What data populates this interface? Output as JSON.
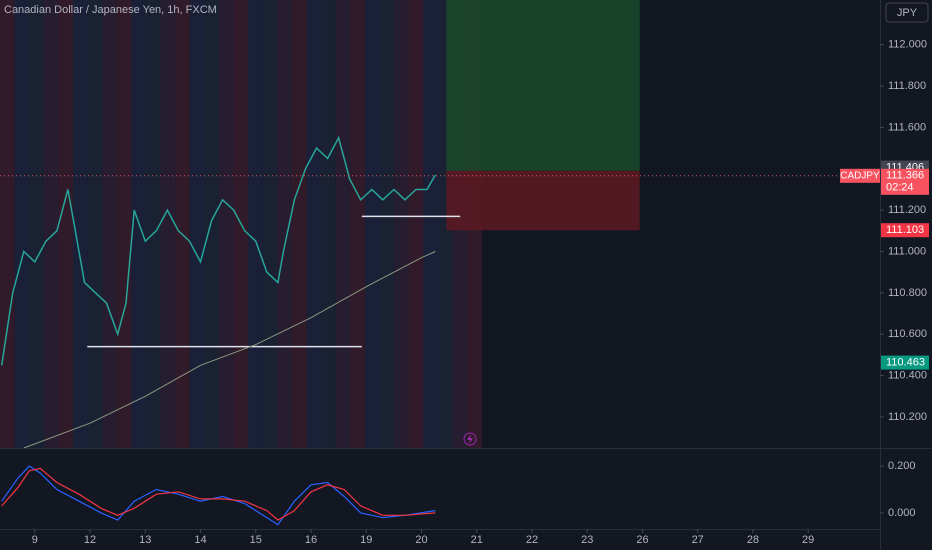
{
  "chart_data": {
    "type": "line",
    "title": "Canadian Dollar / Japanese Yen, 1h, FXCM",
    "currency": "JPY",
    "xlim": [
      -0.63,
      15.3
    ],
    "xticks": [
      {
        "value": 0,
        "label": "9"
      },
      {
        "value": 1,
        "label": "12"
      },
      {
        "value": 2,
        "label": "13"
      },
      {
        "value": 3,
        "label": "14"
      },
      {
        "value": 4,
        "label": "15"
      },
      {
        "value": 5,
        "label": "16"
      },
      {
        "value": 6,
        "label": "19"
      },
      {
        "value": 7,
        "label": "20"
      },
      {
        "value": 8,
        "label": "21"
      },
      {
        "value": 9,
        "label": "22"
      },
      {
        "value": 10,
        "label": "23"
      },
      {
        "value": 11,
        "label": "26"
      },
      {
        "value": 12,
        "label": "27"
      },
      {
        "value": 13,
        "label": "28"
      },
      {
        "value": 14,
        "label": "29"
      }
    ],
    "ylim": [
      110.05,
      112.216
    ],
    "yticks": [
      {
        "value": 110.2,
        "label": "110.200"
      },
      {
        "value": 110.4,
        "label": "110.400"
      },
      {
        "value": 110.6,
        "label": "110.600"
      },
      {
        "value": 110.8,
        "label": "110.800"
      },
      {
        "value": 111.0,
        "label": "111.000"
      },
      {
        "value": 111.2,
        "label": "111.200"
      },
      {
        "value": 111.4,
        "label": "111.400"
      },
      {
        "value": 111.6,
        "label": "111.600"
      },
      {
        "value": 111.8,
        "label": "111.800"
      },
      {
        "value": 112.0,
        "label": "112.000"
      }
    ],
    "series": [
      {
        "color": "#26a69a",
        "x": [
          -0.6,
          -0.4,
          -0.2,
          0,
          0.2,
          0.4,
          0.6,
          0.7,
          0.9,
          1.1,
          1.3,
          1.5,
          1.65,
          1.8,
          2.0,
          2.2,
          2.4,
          2.6,
          2.8,
          3.0,
          3.2,
          3.4,
          3.6,
          3.8,
          4.0,
          4.2,
          4.4,
          4.5,
          4.7,
          4.9,
          5.1,
          5.3,
          5.5,
          5.7,
          5.9,
          6.1,
          6.3,
          6.5,
          6.7,
          6.9,
          7.1,
          7.25
        ],
        "values": [
          110.45,
          110.8,
          111.0,
          110.95,
          111.05,
          111.1,
          111.3,
          111.15,
          110.85,
          110.8,
          110.75,
          110.6,
          110.75,
          111.2,
          111.05,
          111.1,
          111.2,
          111.1,
          111.05,
          110.95,
          111.15,
          111.25,
          111.2,
          111.1,
          111.05,
          110.9,
          110.85,
          111.0,
          111.25,
          111.4,
          111.5,
          111.45,
          111.55,
          111.35,
          111.25,
          111.3,
          111.25,
          111.3,
          111.25,
          111.3,
          111.3,
          111.37
        ]
      },
      {
        "color": "#8a9a80",
        "x": [
          -0.2,
          1.0,
          2.0,
          3.0,
          4.0,
          5.0,
          6.0,
          7.0,
          7.25
        ],
        "values": [
          110.05,
          110.17,
          110.3,
          110.45,
          110.55,
          110.68,
          110.83,
          110.97,
          111.0
        ]
      }
    ],
    "hlines": [
      {
        "value": 110.54,
        "x": [
          0.95,
          5.92
        ]
      },
      {
        "value": 111.17,
        "x": [
          5.92,
          7.7
        ]
      }
    ],
    "position": {
      "x": [
        7.45,
        10.95
      ],
      "entry": 111.39,
      "target": 112.216,
      "stop": 111.103
    },
    "price_tags": [
      {
        "value": 111.406,
        "color": "#434651"
      },
      {
        "value": 111.366,
        "color": "#f7525f",
        "symbol": "CADJPY",
        "countdown": "02:24"
      },
      {
        "value": 111.103,
        "color": "#f23645"
      },
      {
        "value": 110.463,
        "color": "#089981"
      }
    ],
    "oscillator": {
      "ylim": [
        -0.06,
        0.26
      ],
      "yticks": [
        {
          "value": 0,
          "label": "0.000"
        },
        {
          "value": 0.2,
          "label": "0.200"
        }
      ],
      "series": [
        {
          "color": "#2962ff",
          "x": [
            -0.6,
            -0.3,
            -0.1,
            0.1,
            0.4,
            0.8,
            1.2,
            1.5,
            1.8,
            2.2,
            2.6,
            3.0,
            3.4,
            3.8,
            4.2,
            4.4,
            4.7,
            5.0,
            5.3,
            5.6,
            5.9,
            6.3,
            6.7,
            7.25
          ],
          "values": [
            0.05,
            0.15,
            0.2,
            0.17,
            0.1,
            0.05,
            0.0,
            -0.03,
            0.05,
            0.1,
            0.08,
            0.05,
            0.07,
            0.04,
            -0.02,
            -0.05,
            0.05,
            0.12,
            0.13,
            0.07,
            0.0,
            -0.02,
            -0.01,
            0.01
          ]
        },
        {
          "color": "#f23645",
          "x": [
            -0.6,
            -0.3,
            -0.1,
            0.1,
            0.4,
            0.8,
            1.2,
            1.5,
            1.8,
            2.2,
            2.6,
            3.0,
            3.4,
            3.8,
            4.2,
            4.4,
            4.7,
            5.0,
            5.3,
            5.6,
            5.9,
            6.3,
            6.7,
            7.25
          ],
          "values": [
            0.03,
            0.11,
            0.18,
            0.19,
            0.13,
            0.08,
            0.02,
            -0.01,
            0.02,
            0.08,
            0.09,
            0.06,
            0.06,
            0.05,
            0.01,
            -0.03,
            0.01,
            0.09,
            0.12,
            0.1,
            0.03,
            -0.01,
            -0.01,
            0.0
          ]
        }
      ]
    }
  }
}
